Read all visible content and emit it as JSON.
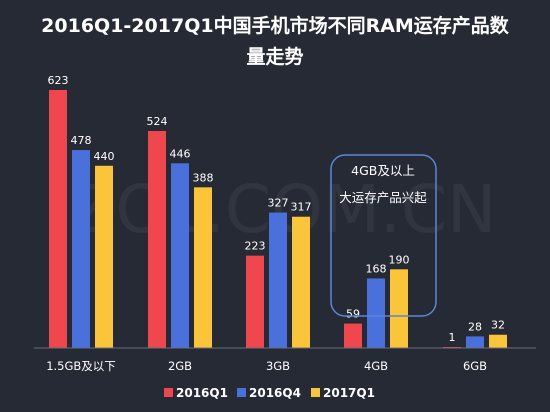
{
  "chart_data": {
    "type": "bar",
    "title_line1": "2016Q1-2017Q1中国手机市场不同RAM运存产品数",
    "title_line2": "量走势",
    "categories": [
      "1.5GB及以下",
      "2GB",
      "3GB",
      "4GB",
      "6GB"
    ],
    "series": [
      {
        "name": "2016Q1",
        "color": "#f0464d",
        "values": [
          623,
          524,
          223,
          59,
          1
        ]
      },
      {
        "name": "2016Q4",
        "color": "#4a70dc",
        "values": [
          478,
          446,
          327,
          168,
          28
        ]
      },
      {
        "name": "2017Q1",
        "color": "#fbc53a",
        "values": [
          440,
          388,
          317,
          190,
          32
        ]
      }
    ],
    "ylim": [
      0,
      700
    ],
    "grid": false,
    "legend": "bottom-center",
    "annotation": {
      "line1": "4GB及以上",
      "line2": "大运存产品兴起",
      "category": "4GB"
    },
    "watermark": "ZOL.COM.CN"
  }
}
